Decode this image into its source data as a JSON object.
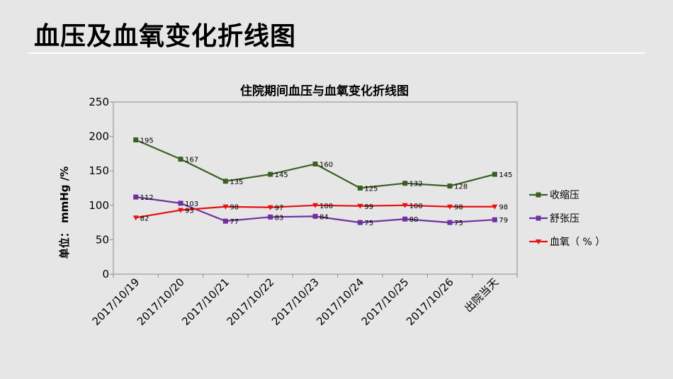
{
  "slide": {
    "title": "血压及血氧变化折线图"
  },
  "chart_data": {
    "type": "line",
    "title": "住院期间血压与血氧变化折线图",
    "xlabel": "",
    "ylabel": "单位： mmHg /%",
    "ylim": [
      0,
      250
    ],
    "yticks": [
      0,
      50,
      100,
      150,
      200,
      250
    ],
    "grid": false,
    "legend_position": "right",
    "categories": [
      "2017/10/19",
      "2017/10/20",
      "2017/10/21",
      "2017/10/22",
      "2017/10/23",
      "2017/10/24",
      "2017/10/25",
      "2017/10/26",
      "出院当天"
    ],
    "series": [
      {
        "name": "收缩压",
        "color": "#3a5f23",
        "marker": "square",
        "values": [
          195,
          167,
          135,
          145,
          160,
          125,
          132,
          128,
          145
        ]
      },
      {
        "name": "舒张压",
        "color": "#7030a0",
        "marker": "square",
        "values": [
          112,
          103,
          77,
          83,
          84,
          75,
          80,
          75,
          79
        ]
      },
      {
        "name": "血氧（ % ）",
        "color": "#e81010",
        "marker": "triangle-down",
        "values": [
          82,
          93,
          98,
          97,
          100,
          99,
          100,
          98,
          98
        ]
      }
    ]
  }
}
